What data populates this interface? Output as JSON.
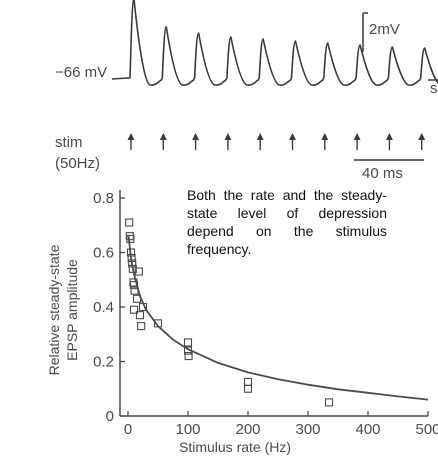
{
  "trace": {
    "baseline_label": "−66 mV",
    "stim_label": "stim",
    "stim_rate_label": "(50Hz)",
    "scale_v_label": "2mV",
    "scale_t_label": "40 ms",
    "edge_fragment": "s"
  },
  "annotation": "Both the rate and the steady-state level of depression depend on the stimulus frequency.",
  "chart_data": {
    "type": "scatter",
    "xlabel": "Stimulus rate (Hz)",
    "ylabel": [
      "Relative steady-state",
      "EPSP amplitude"
    ],
    "xlim": [
      0,
      500
    ],
    "ylim": [
      0,
      0.8
    ],
    "xticks": [
      0,
      100,
      200,
      300,
      400,
      500
    ],
    "yticks": [
      0,
      0.2,
      0.4,
      0.6,
      0.8
    ],
    "grid": false,
    "series": [
      {
        "marker": "square",
        "points": [
          [
            2,
            0.71
          ],
          [
            3,
            0.66
          ],
          [
            4,
            0.65
          ],
          [
            5,
            0.6
          ],
          [
            6,
            0.58
          ],
          [
            7,
            0.56
          ],
          [
            8,
            0.54
          ],
          [
            9,
            0.49
          ],
          [
            10,
            0.48
          ],
          [
            11,
            0.46
          ],
          [
            10,
            0.39
          ],
          [
            15,
            0.43
          ],
          [
            18,
            0.53
          ],
          [
            20,
            0.37
          ],
          [
            22,
            0.33
          ],
          [
            25,
            0.4
          ],
          [
            50,
            0.34
          ],
          [
            100,
            0.27
          ],
          [
            100,
            0.24
          ],
          [
            101,
            0.22
          ],
          [
            200,
            0.125
          ],
          [
            200,
            0.1
          ],
          [
            335,
            0.05
          ]
        ]
      },
      {
        "marker": "line",
        "points": [
          [
            1,
            0.66
          ],
          [
            5,
            0.58
          ],
          [
            10,
            0.52
          ],
          [
            20,
            0.44
          ],
          [
            30,
            0.39
          ],
          [
            50,
            0.33
          ],
          [
            75,
            0.28
          ],
          [
            100,
            0.245
          ],
          [
            150,
            0.195
          ],
          [
            200,
            0.16
          ],
          [
            250,
            0.135
          ],
          [
            300,
            0.115
          ],
          [
            350,
            0.098
          ],
          [
            400,
            0.085
          ],
          [
            450,
            0.072
          ],
          [
            500,
            0.06
          ]
        ]
      }
    ]
  }
}
